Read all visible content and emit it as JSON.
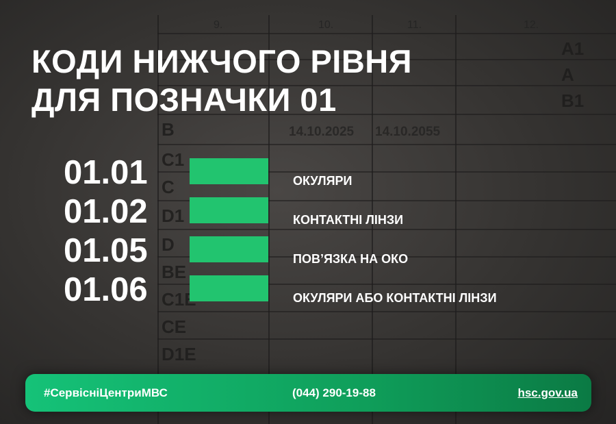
{
  "background_table": {
    "column_headers": [
      "9.",
      "10.",
      "11.",
      "12."
    ],
    "row_labels": [
      "A1",
      "A",
      "B1",
      "B",
      "C1",
      "C",
      "D1",
      "D",
      "BE",
      "C1E",
      "CE",
      "D1E"
    ],
    "dates": [
      "14.10.2025",
      "14.10.2055"
    ]
  },
  "title": {
    "line1": "КОДИ НИЖЧОГО РІВНЯ",
    "line2": "ДЛЯ ПОЗНАЧКИ 01"
  },
  "codes": [
    {
      "code": "01.01",
      "label": "ОКУЛЯРИ"
    },
    {
      "code": "01.02",
      "label": "КОНТАКТНІ ЛІНЗИ"
    },
    {
      "code": "01.05",
      "label": "ПОВ’ЯЗКА НА ОКО"
    },
    {
      "code": "01.06",
      "label": "ОКУЛЯРИ АБО КОНТАКТНІ ЛІНЗИ"
    }
  ],
  "footer": {
    "hashtag": "#СервісніЦентриМВС",
    "phone": "(044) 290-19-88",
    "website": "hsc.gov.ua"
  },
  "colors": {
    "accent": "#22c46f",
    "background": "#353331"
  }
}
